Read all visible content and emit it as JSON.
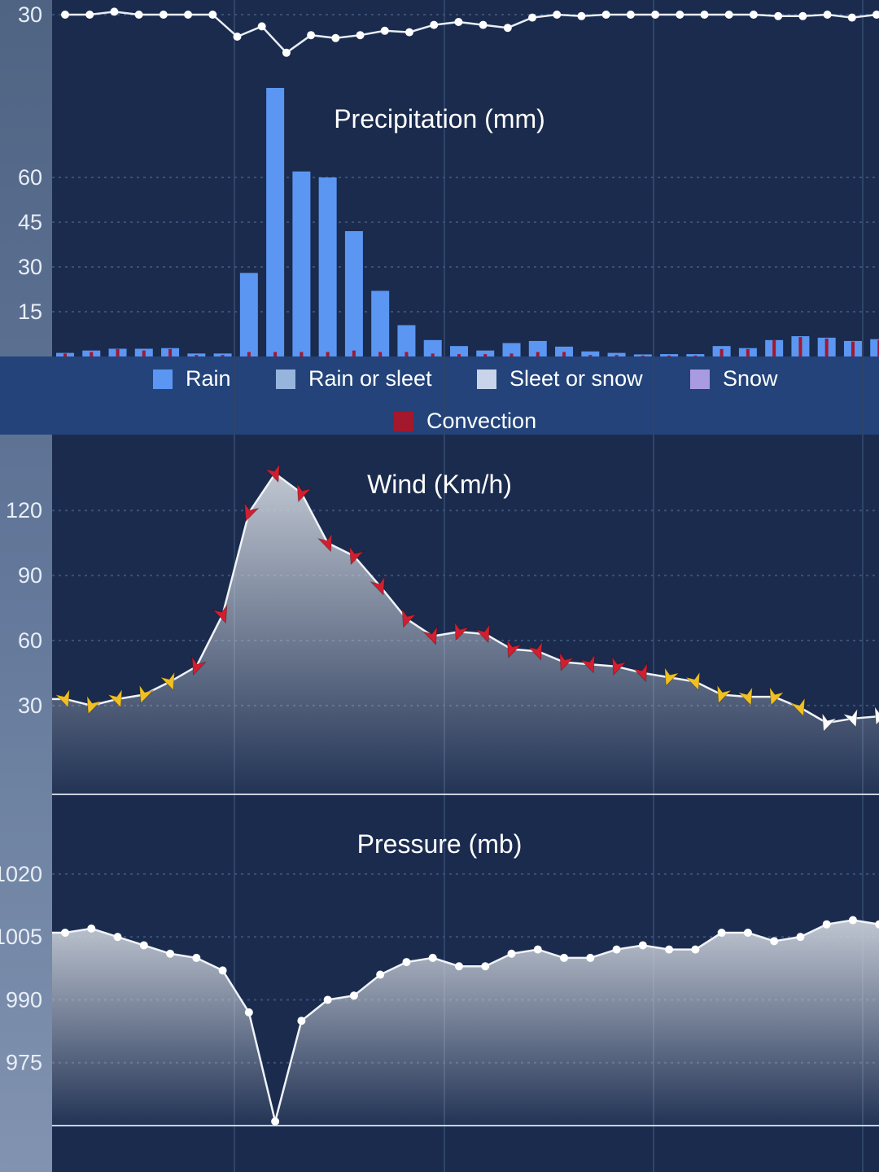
{
  "chart_data": [
    {
      "id": "humidity",
      "type": "line",
      "title": "",
      "yticks": [
        30
      ],
      "ylim": [
        25,
        31
      ],
      "values": [
        30.0,
        30.0,
        30.2,
        30.0,
        30.0,
        30.0,
        30.0,
        28.5,
        29.2,
        27.4,
        28.6,
        28.4,
        28.6,
        28.9,
        28.8,
        29.3,
        29.5,
        29.3,
        29.1,
        29.8,
        30.0,
        29.9,
        30.0,
        30.0,
        30.0,
        30.0,
        30.0,
        30.0,
        30.0,
        29.9,
        29.9,
        30.0,
        29.8,
        30.0
      ]
    },
    {
      "id": "precipitation",
      "type": "bar",
      "title": "Precipitation (mm)",
      "yticks": [
        15,
        30,
        45,
        60
      ],
      "ylim": [
        0,
        90
      ],
      "legend": [
        "Rain",
        "Rain or sleet",
        "Sleet or snow",
        "Snow",
        "Convection"
      ],
      "colors": {
        "Rain": "#5b96f2",
        "Rain or sleet": "#96b4dc",
        "Sleet or snow": "#c9d4ea",
        "Snow": "#a99be0",
        "Convection": "#a3182c"
      },
      "series": [
        {
          "name": "Rain",
          "values": [
            1.2,
            2.0,
            2.6,
            2.6,
            2.8,
            1.0,
            1.0,
            28,
            90,
            62,
            60,
            42,
            22,
            10.5,
            5.5,
            3.5,
            2.0,
            4.5,
            5.2,
            3.3,
            1.7,
            1.2,
            0.7,
            0.8,
            0.8,
            3.5,
            2.8,
            5.5,
            6.8,
            6.3,
            5.2,
            5.8
          ]
        },
        {
          "name": "Convection",
          "values": [
            1.0,
            1.5,
            2.5,
            2.0,
            2.5,
            0.5,
            0.5,
            1.5,
            1.5,
            1.5,
            1.5,
            2.0,
            1.5,
            1.5,
            1.0,
            0.8,
            0.8,
            1.0,
            1.5,
            1.5,
            0.5,
            0.5,
            0.3,
            0.3,
            0.3,
            2.5,
            2.5,
            5.5,
            6.5,
            6.0,
            5.0,
            5.5
          ]
        }
      ]
    },
    {
      "id": "wind",
      "type": "area",
      "title": "Wind (Km/h)",
      "yticks": [
        30,
        60,
        90,
        120
      ],
      "ylim": [
        -11,
        155
      ],
      "direction_marker_colors": {
        "light": "#ffffff",
        "moderate": "#f0c023",
        "strong": "#d11f30"
      },
      "values": [
        33,
        30,
        33,
        35,
        41,
        48,
        72,
        119,
        137,
        128,
        105,
        99,
        85,
        70,
        62,
        64,
        63,
        56,
        55,
        50,
        49,
        48,
        45,
        43,
        41,
        35,
        34,
        34,
        29,
        22,
        24,
        25
      ],
      "marker_levels": [
        "moderate",
        "moderate",
        "moderate",
        "moderate",
        "moderate",
        "strong",
        "strong",
        "strong",
        "strong",
        "strong",
        "strong",
        "strong",
        "strong",
        "strong",
        "strong",
        "strong",
        "strong",
        "strong",
        "strong",
        "strong",
        "strong",
        "strong",
        "strong",
        "moderate",
        "moderate",
        "moderate",
        "moderate",
        "moderate",
        "moderate",
        "light",
        "light",
        "light"
      ]
    },
    {
      "id": "pressure",
      "type": "area",
      "title": "Pressure (mb)",
      "yticks": [
        975,
        990,
        1005,
        1020
      ],
      "ylim": [
        960,
        1039
      ],
      "values": [
        1006,
        1007,
        1005,
        1003,
        1001,
        1000,
        997,
        987,
        961,
        985,
        990,
        991,
        996,
        999,
        1000,
        998,
        998,
        1001,
        1002,
        1000,
        1000,
        1002,
        1003,
        1002,
        1002,
        1006,
        1006,
        1004,
        1005,
        1008,
        1009,
        1008
      ]
    }
  ],
  "legend": {
    "rain": "Rain",
    "rain_or_sleet": "Rain or sleet",
    "sleet_or_snow": "Sleet or snow",
    "snow": "Snow",
    "convection": "Convection"
  }
}
